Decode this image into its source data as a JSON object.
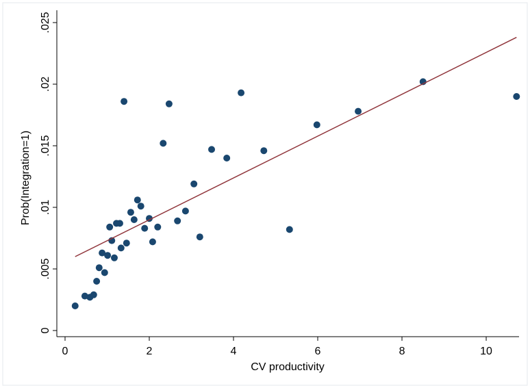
{
  "chart_data": {
    "type": "scatter",
    "x_label": "CV productivity",
    "y_label": "Prob(Integration=1)",
    "xlim": [
      -0.195,
      10.78
    ],
    "ylim": [
      -0.0005,
      0.026
    ],
    "xticks": [
      0,
      2,
      4,
      6,
      8,
      10
    ],
    "yticks": [
      0,
      {
        "value": 0.005,
        "label": ".005"
      },
      {
        "value": 0.01,
        "label": ".01"
      },
      {
        "value": 0.015,
        "label": ".015"
      },
      {
        "value": 0.02,
        "label": ".02"
      },
      {
        "value": 0.025,
        "label": ".025"
      }
    ],
    "series": [
      {
        "type": "scatter",
        "color": "#1a476f",
        "x": [
          0.24,
          0.47,
          0.59,
          0.68,
          0.75,
          0.81,
          0.88,
          0.94,
          1.01,
          1.06,
          1.11,
          1.17,
          1.22,
          1.3,
          1.33,
          1.4,
          1.46,
          1.56,
          1.64,
          1.72,
          1.8,
          1.89,
          2.0,
          2.08,
          2.2,
          2.33,
          2.47,
          2.67,
          2.86,
          3.06,
          3.2,
          3.48,
          3.84,
          4.18,
          4.72,
          5.33,
          5.98,
          6.96,
          8.5,
          10.72
        ],
        "values": [
          0.002,
          0.0028,
          0.0027,
          0.0029,
          0.004,
          0.0051,
          0.0063,
          0.0047,
          0.0061,
          0.0084,
          0.0073,
          0.0059,
          0.0087,
          0.0087,
          0.0067,
          0.0186,
          0.0071,
          0.0096,
          0.009,
          0.0106,
          0.0101,
          0.0083,
          0.0091,
          0.0072,
          0.0084,
          0.0152,
          0.0184,
          0.0089,
          0.0097,
          0.0119,
          0.0076,
          0.0147,
          0.014,
          0.0193,
          0.0146,
          0.0082,
          0.0167,
          0.0178,
          0.0202,
          0.019
        ]
      },
      {
        "type": "line",
        "color": "#90353b",
        "x": [
          0.24,
          10.72
        ],
        "values": [
          0.006,
          0.0238
        ]
      }
    ]
  }
}
